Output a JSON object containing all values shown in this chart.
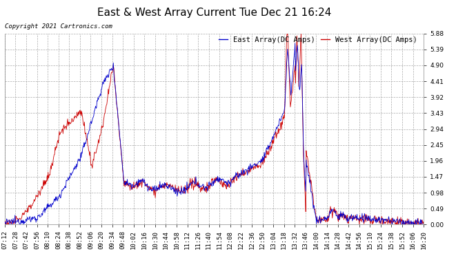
{
  "title": "East & West Array Current Tue Dec 21 16:24",
  "copyright": "Copyright 2021 Cartronics.com",
  "east_label": "East Array(DC Amps)",
  "west_label": "West Array(DC Amps)",
  "east_color": "#0000cc",
  "west_color": "#cc0000",
  "ylim": [
    0.0,
    5.88
  ],
  "yticks": [
    0.0,
    0.49,
    0.98,
    1.47,
    1.96,
    2.45,
    2.94,
    3.43,
    3.92,
    4.41,
    4.9,
    5.39,
    5.88
  ],
  "background_color": "#ffffff",
  "grid_color": "#aaaaaa",
  "title_fontsize": 11,
  "tick_fontsize": 6.5,
  "legend_fontsize": 7.5,
  "copyright_fontsize": 6.5,
  "x_labels": [
    "07:12",
    "07:28",
    "07:42",
    "07:56",
    "08:10",
    "08:24",
    "08:38",
    "08:52",
    "09:06",
    "09:20",
    "09:34",
    "09:48",
    "10:02",
    "10:16",
    "10:30",
    "10:44",
    "10:58",
    "11:12",
    "11:26",
    "11:40",
    "11:54",
    "12:08",
    "12:22",
    "12:36",
    "12:50",
    "13:04",
    "13:18",
    "13:32",
    "13:46",
    "14:00",
    "14:14",
    "14:28",
    "14:42",
    "14:56",
    "15:10",
    "15:24",
    "15:38",
    "15:52",
    "16:06",
    "16:20"
  ]
}
